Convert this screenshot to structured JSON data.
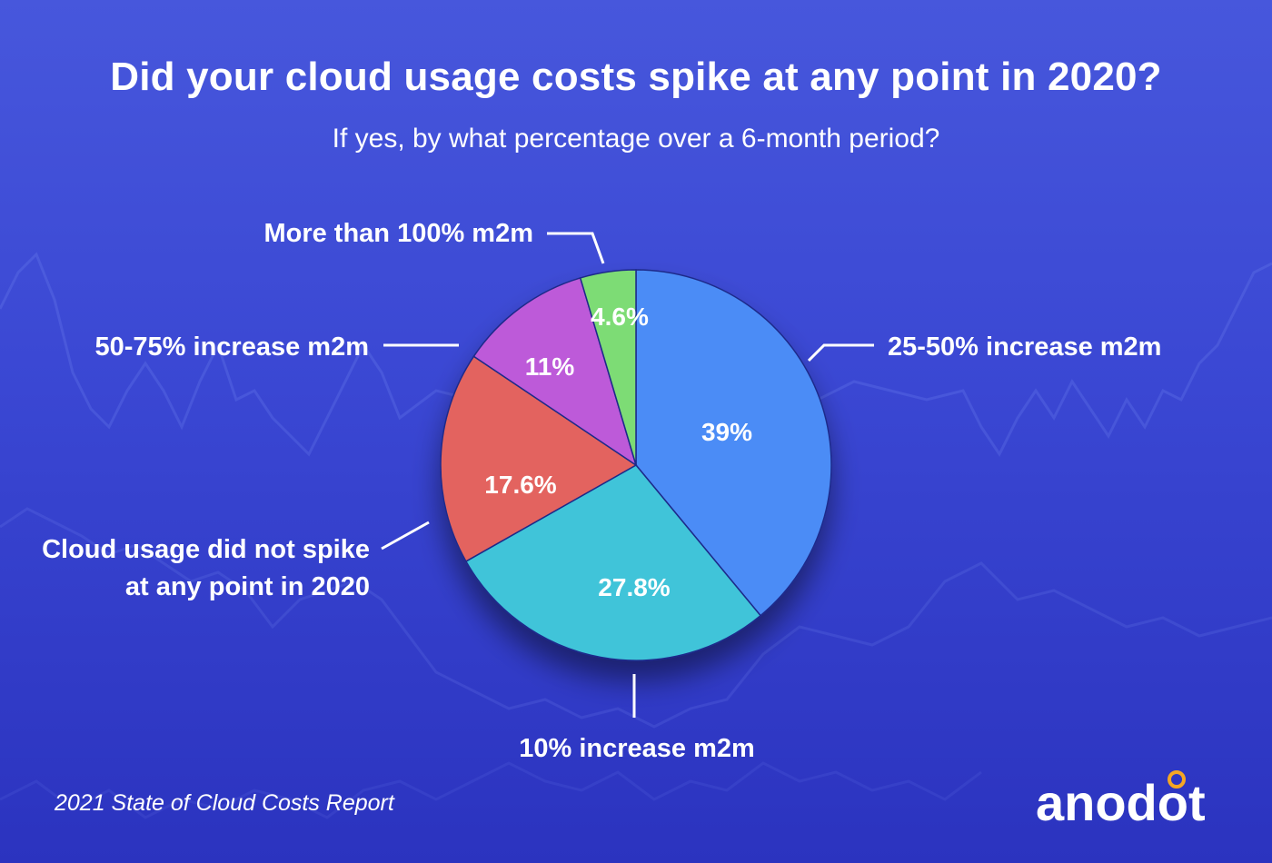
{
  "header": {
    "title": "Did your cloud usage costs spike at any point in 2020?",
    "subtitle": "If yes, by what percentage over a 6-month period?"
  },
  "footer": {
    "source": "2021 State of Cloud Costs Report",
    "brand": "anodot",
    "brand_accent_color": "#f5a623"
  },
  "chart_data": {
    "type": "pie",
    "title": "Did your cloud usage costs spike at any point in 2020?",
    "subtitle": "If yes, by what percentage over a 6-month period?",
    "slices": [
      {
        "category": "25-50% increase m2m",
        "value": 39,
        "label": "39%",
        "color": "#4b8cf6"
      },
      {
        "category": "10% increase m2m",
        "value": 27.8,
        "label": "27.8%",
        "color": "#40c4d9"
      },
      {
        "category": [
          "Cloud usage did not spike",
          "at any point in 2020"
        ],
        "value": 17.6,
        "label": "17.6%",
        "color": "#e3645f"
      },
      {
        "category": "50-75% increase m2m",
        "value": 11,
        "label": "11%",
        "color": "#bd5ad9"
      },
      {
        "category": "More than 100% m2m",
        "value": 4.6,
        "label": "4.6%",
        "color": "#7ddc74"
      }
    ],
    "start": "top",
    "direction": "clockwise"
  }
}
